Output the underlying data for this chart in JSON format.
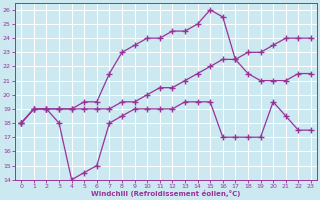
{
  "xlabel": "Windchill (Refroidissement éolien,°C)",
  "bg_color": "#cce8f0",
  "grid_color": "#ffffff",
  "line_color": "#993399",
  "xlim": [
    -0.5,
    23.5
  ],
  "ylim": [
    14,
    26.5
  ],
  "xticks": [
    0,
    1,
    2,
    3,
    4,
    5,
    6,
    7,
    8,
    9,
    10,
    11,
    12,
    13,
    14,
    15,
    16,
    17,
    18,
    19,
    20,
    21,
    22,
    23
  ],
  "yticks": [
    14,
    15,
    16,
    17,
    18,
    19,
    20,
    21,
    22,
    23,
    24,
    25,
    26
  ],
  "line1_x": [
    0,
    1,
    2,
    3,
    4,
    5,
    6,
    7,
    8,
    9,
    10,
    11,
    12,
    13,
    14,
    15,
    16,
    17,
    18,
    19,
    20,
    21,
    22,
    23
  ],
  "line1_y": [
    18,
    19,
    19,
    19,
    19,
    19,
    19,
    19,
    19.5,
    19.5,
    20,
    20.5,
    20.5,
    21,
    21.5,
    22,
    22.5,
    22.5,
    23,
    23,
    23.5,
    24,
    24,
    24
  ],
  "line2_x": [
    0,
    1,
    2,
    3,
    4,
    5,
    6,
    7,
    8,
    9,
    10,
    11,
    12,
    13,
    14,
    15,
    16,
    17,
    18,
    19,
    20,
    21,
    22,
    23
  ],
  "line2_y": [
    18,
    19,
    19,
    19,
    19,
    19.5,
    19.5,
    21.5,
    23,
    23.5,
    24,
    24,
    24.5,
    24.5,
    25,
    26,
    25.5,
    22.5,
    21.5,
    21,
    21,
    21,
    21.5,
    21.5
  ],
  "line3_x": [
    0,
    1,
    2,
    3,
    4,
    5,
    6,
    7,
    8,
    9,
    10,
    11,
    12,
    13,
    14,
    15,
    16,
    17,
    18,
    19,
    20,
    21,
    22,
    23
  ],
  "line3_y": [
    18,
    19,
    19,
    18,
    14,
    14.5,
    15,
    18,
    18.5,
    19,
    19,
    19,
    19,
    19.5,
    19.5,
    19.5,
    17,
    17,
    17,
    17,
    19.5,
    18.5,
    17.5,
    17.5
  ]
}
